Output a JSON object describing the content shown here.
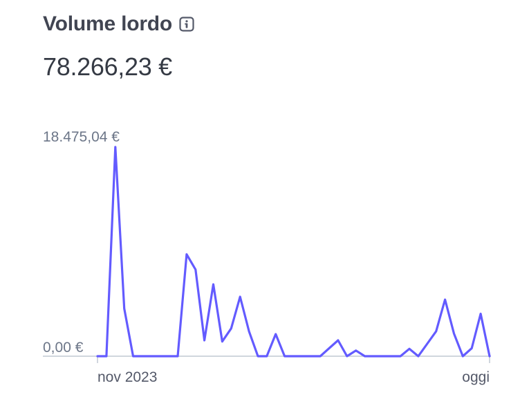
{
  "header": {
    "title": "Volume lordo",
    "info_icon": "info-icon",
    "total": "78.266,23 €"
  },
  "colors": {
    "line": "#635bff",
    "baseline": "#c0c8d2",
    "text_dark": "#414552",
    "text_muted": "#6c7688"
  },
  "chart_data": {
    "type": "line",
    "ylim": [
      0,
      18475.04
    ],
    "y_tick_labels": {
      "max": "18.475,04 €",
      "min": "0,00 €"
    },
    "x_tick_labels": {
      "start": "nov 2023",
      "end": "oggi"
    },
    "values": [
      0,
      0,
      18475,
      4200,
      0,
      0,
      0,
      0,
      0,
      0,
      9000,
      7650,
      1400,
      6350,
      1300,
      2450,
      5250,
      2200,
      0,
      0,
      1950,
      0,
      0,
      0,
      0,
      0,
      700,
      1400,
      0,
      500,
      0,
      0,
      0,
      0,
      0,
      650,
      0,
      1100,
      2200,
      5000,
      2000,
      0,
      700,
      3750,
      0
    ]
  }
}
